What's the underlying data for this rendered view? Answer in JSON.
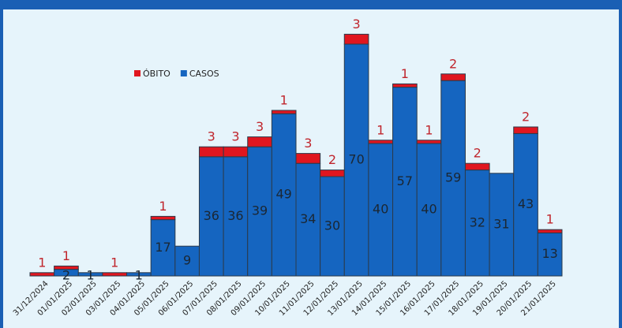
{
  "chart_data": {
    "type": "stacked_bar",
    "categories": [
      "31/12/2024",
      "01/01/2025",
      "02/01/2025",
      "03/01/2025",
      "04/01/2025",
      "05/01/2025",
      "06/01/2025",
      "07/01/2025",
      "08/01/2025",
      "09/01/2025",
      "10/01/2025",
      "11/01/2025",
      "12/01/2025",
      "13/01/2025",
      "14/01/2025",
      "15/01/2025",
      "16/01/2025",
      "17/01/2025",
      "18/01/2025",
      "19/01/2025",
      "20/01/2025",
      "21/01/2025"
    ],
    "series": [
      {
        "name": "CASOS",
        "color": "#1565c0",
        "values": [
          null,
          2,
          1,
          null,
          1,
          17,
          9,
          36,
          36,
          39,
          49,
          34,
          30,
          70,
          40,
          57,
          40,
          59,
          32,
          31,
          43,
          13
        ]
      },
      {
        "name": "ÓBITO",
        "color": "#e0161f",
        "values": [
          1,
          1,
          null,
          1,
          null,
          1,
          null,
          3,
          3,
          3,
          1,
          3,
          2,
          3,
          1,
          1,
          1,
          2,
          2,
          null,
          2,
          1
        ]
      }
    ],
    "ylim": [
      0,
      75
    ],
    "legend": "top-left"
  }
}
